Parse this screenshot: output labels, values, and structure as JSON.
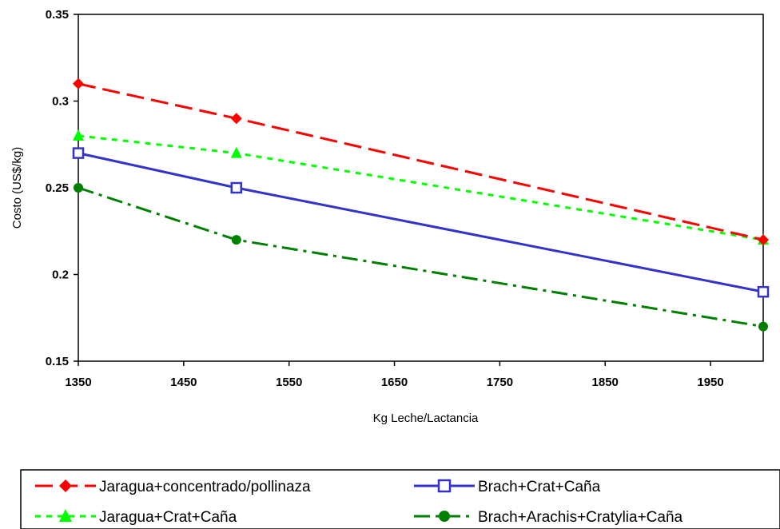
{
  "chart_data": {
    "type": "line",
    "title": "",
    "xlabel": "Kg Leche/Lactancia",
    "ylabel": "Costo (US$/kg)",
    "x": [
      1350,
      1500,
      2000
    ],
    "xlim": [
      1350,
      2000
    ],
    "xticks": [
      1350,
      1450,
      1550,
      1650,
      1750,
      1850,
      1950
    ],
    "xtick_labels": [
      "1350",
      "1450",
      "1550",
      "1650",
      "1750",
      "1850",
      "1950"
    ],
    "ylim": [
      0.15,
      0.35
    ],
    "yticks": [
      0.15,
      0.2,
      0.25,
      0.3,
      0.35
    ],
    "ytick_labels": [
      "0.15",
      "0.2",
      "0.25",
      "0.3",
      "0.35"
    ],
    "grid": false,
    "legend_position": "bottom",
    "series": [
      {
        "name": "Jaragua+concentrado/pollinaza",
        "values": [
          0.31,
          0.29,
          0.22
        ],
        "color": "#ff0000",
        "marker": "diamond",
        "dash": "long-dash"
      },
      {
        "name": "Brach+Crat+Caña",
        "values": [
          0.27,
          0.25,
          0.19
        ],
        "color": "#3333cc",
        "marker": "square",
        "dash": "solid"
      },
      {
        "name": "Jaragua+Crat+Caña",
        "values": [
          0.28,
          0.27,
          0.22
        ],
        "color": "#00ff00",
        "marker": "triangle",
        "dash": "short-dash"
      },
      {
        "name": "Brach+Arachis+Cratylia+Caña",
        "values": [
          0.25,
          0.22,
          0.17
        ],
        "color": "#008000",
        "marker": "circle",
        "dash": "dash-dot"
      }
    ]
  }
}
